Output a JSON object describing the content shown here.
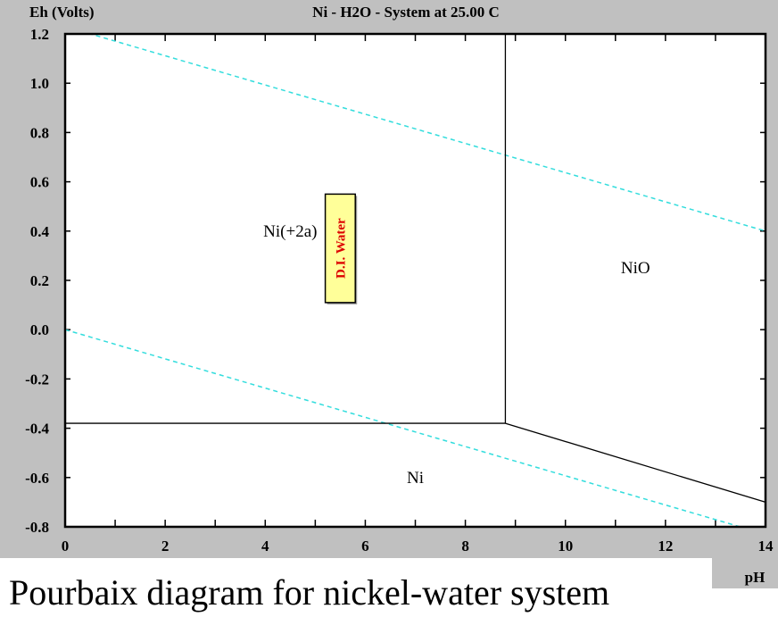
{
  "chart_data": {
    "type": "line",
    "title": "Ni - H2O - System at 25.00 C",
    "ylabel": "Eh (Volts)",
    "xlabel": "pH",
    "xlim": [
      0,
      14
    ],
    "ylim": [
      -0.8,
      1.2
    ],
    "xticks": [
      "0",
      "2",
      "4",
      "6",
      "8",
      "10",
      "12",
      "14"
    ],
    "yticks": [
      "1.2",
      "1.0",
      "0.8",
      "0.6",
      "0.4",
      "0.2",
      "0.0",
      "-0.2",
      "-0.4",
      "-0.6",
      "-0.8"
    ],
    "grid": false,
    "boundaries": [
      {
        "points": [
          [
            0,
            -0.38
          ],
          [
            8.8,
            -0.38
          ]
        ],
        "color": "#000000"
      },
      {
        "points": [
          [
            8.8,
            1.2
          ],
          [
            8.8,
            -0.38
          ]
        ],
        "color": "#000000"
      },
      {
        "points": [
          [
            8.8,
            -0.38
          ],
          [
            14,
            -0.7
          ]
        ],
        "color": "#000000"
      }
    ],
    "water_lines": [
      {
        "points": [
          [
            0,
            1.23
          ],
          [
            14,
            0.4
          ]
        ],
        "color": "#33dddd",
        "style": "dashed"
      },
      {
        "points": [
          [
            0,
            0.0
          ],
          [
            14,
            -0.83
          ]
        ],
        "color": "#33dddd",
        "style": "dashed"
      }
    ],
    "regions": [
      {
        "label": "Ni(+2a)",
        "at": [
          4.5,
          0.4
        ]
      },
      {
        "label": "NiO",
        "at": [
          11.4,
          0.25
        ]
      },
      {
        "label": "Ni",
        "at": [
          7.0,
          -0.6
        ]
      }
    ],
    "annotation": {
      "label": "D.I. Water",
      "ph": [
        5.2,
        5.8
      ],
      "eh": [
        0.11,
        0.55
      ],
      "fill": "#ffff99",
      "text_color": "#dd0000"
    }
  },
  "caption": "Pourbaix diagram for nickel-water system"
}
